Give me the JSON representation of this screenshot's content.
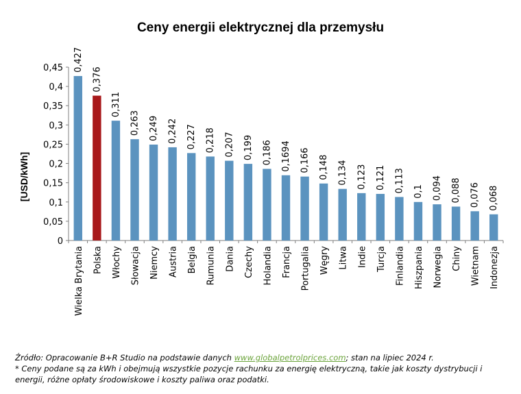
{
  "chart_data": {
    "type": "bar",
    "title": "Ceny energii elektrycznej dla przemysłu",
    "ylabel": "[USD/kWh]",
    "xlabel": "",
    "ylim": [
      0,
      0.45
    ],
    "yticks": [
      "0",
      "0,05",
      "0,1",
      "0,15",
      "0,2",
      "0,25",
      "0,3",
      "0,35",
      "0,4",
      "0,45"
    ],
    "ytick_values": [
      0,
      0.05,
      0.1,
      0.15,
      0.2,
      0.25,
      0.3,
      0.35,
      0.4,
      0.45
    ],
    "categories": [
      "Wielka Brytania",
      "Polska",
      "Włochy",
      "Słowacja",
      "Niemcy",
      "Austria",
      "Belgia",
      "Rumunia",
      "Dania",
      "Czechy",
      "Holandia",
      "Francja",
      "Portugalia",
      "Węgry",
      "Litwa",
      "Indie",
      "Turcja",
      "Finlandia",
      "Hiszpania",
      "Norwegia",
      "Chiny",
      "Wietnam",
      "Indonezja"
    ],
    "values": [
      0.427,
      0.376,
      0.311,
      0.263,
      0.249,
      0.242,
      0.227,
      0.218,
      0.207,
      0.199,
      0.186,
      0.1694,
      0.166,
      0.148,
      0.134,
      0.123,
      0.121,
      0.113,
      0.1,
      0.094,
      0.088,
      0.076,
      0.068
    ],
    "value_labels": [
      "0,427",
      "0,376",
      "0,311",
      "0,263",
      "0,249",
      "0,242",
      "0,227",
      "0,218",
      "0,207",
      "0,199",
      "0,186",
      "0,1694",
      "0,166",
      "0,148",
      "0,134",
      "0,123",
      "0,121",
      "0,113",
      "0,1",
      "0,094",
      "0,088",
      "0,076",
      "0,068"
    ],
    "highlight_index": 1,
    "colors": {
      "bar": "#5b93bf",
      "highlight": "#a8191b",
      "axis": "#7f7f7f"
    },
    "grid": false,
    "legend": "none"
  },
  "notes": {
    "source_prefix": "Źródło: Opracowanie B+R Studio na podstawie danych ",
    "source_link": "www.globalpetrolprices.com",
    "source_suffix": "; stan na lipiec 2024 r.",
    "asterisk": "* Ceny podane są za kWh i obejmują wszystkie pozycje rachunku za energię elektryczną, takie jak koszty dystrybucji i energii, różne opłaty środowiskowe i koszty paliwa oraz podatki."
  }
}
